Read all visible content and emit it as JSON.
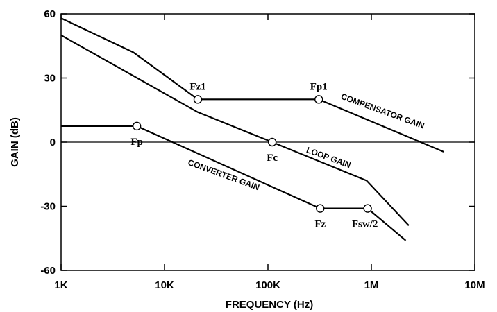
{
  "chart_data": {
    "type": "line",
    "xlabel": "FREQUENCY (Hz)",
    "ylabel": "GAIN (dB)",
    "x_scale": "log",
    "xlim": [
      1000,
      10000000
    ],
    "ylim": [
      -60,
      60
    ],
    "x_ticks": [
      {
        "value": 1000,
        "label": "1K"
      },
      {
        "value": 10000,
        "label": "10K"
      },
      {
        "value": 100000,
        "label": "100K"
      },
      {
        "value": 1000000,
        "label": "1M"
      },
      {
        "value": 10000000,
        "label": "10M"
      }
    ],
    "y_ticks": [
      {
        "value": 60,
        "label": "60"
      },
      {
        "value": 30,
        "label": "30"
      },
      {
        "value": 0,
        "label": "0"
      },
      {
        "value": -30,
        "label": "-30"
      },
      {
        "value": -60,
        "label": "-60"
      }
    ],
    "reference_line_y": 0,
    "series": [
      {
        "name": "COMPENSATOR GAIN",
        "points": [
          [
            1000,
            58
          ],
          [
            5000,
            42
          ],
          [
            21000,
            20
          ],
          [
            310000,
            20
          ],
          [
            5000000,
            -4.5
          ]
        ]
      },
      {
        "name": "LOOP GAIN",
        "points": [
          [
            1000,
            50
          ],
          [
            21000,
            14
          ],
          [
            110000,
            0
          ],
          [
            900000,
            -18
          ],
          [
            2300000,
            -39
          ]
        ]
      },
      {
        "name": "CONVERTER GAIN",
        "points": [
          [
            1000,
            7.5
          ],
          [
            5400,
            7.5
          ],
          [
            320000,
            -31
          ],
          [
            920000,
            -31
          ],
          [
            2150000,
            -46
          ]
        ]
      }
    ],
    "annotations": [
      {
        "label": "Fz1",
        "x": 21000,
        "y": 20,
        "marker": true,
        "text_pos": "above"
      },
      {
        "label": "Fp1",
        "x": 310000,
        "y": 20,
        "marker": true,
        "text_pos": "above"
      },
      {
        "label": "Fc",
        "x": 110000,
        "y": 0,
        "marker": true,
        "text_pos": "below"
      },
      {
        "label": "Fp",
        "x": 5400,
        "y": 7.5,
        "marker": true,
        "text_pos": "below"
      },
      {
        "label": "Fz",
        "x": 320000,
        "y": -31,
        "marker": true,
        "text_pos": "below"
      },
      {
        "label": "Fsw/2",
        "x": 920000,
        "y": -31,
        "marker": true,
        "text_pos": "below"
      }
    ]
  }
}
